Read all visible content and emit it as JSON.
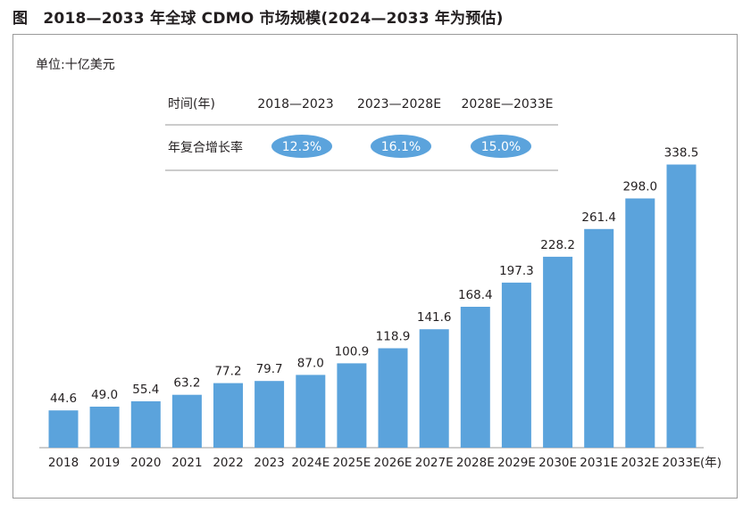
{
  "figure": {
    "title": "图　2018—2033 年全球 CDMO 市场规模(2024—2033 年为预估)",
    "unit": "单位:十亿美元"
  },
  "cagr_table": {
    "row1_label": "时间(年)",
    "row2_label": "年复合增长率",
    "periods": [
      "2018—2023",
      "2023—2028E",
      "2028E—2033E"
    ],
    "rates": [
      "12.3%",
      "16.1%",
      "15.0%"
    ]
  },
  "colors": {
    "bar": "#5ba3dc",
    "pill": "#5ba3dc",
    "axis": "#9a9a9a",
    "text": "#231f20"
  },
  "chart_data": {
    "type": "bar",
    "categories": [
      "2018",
      "2019",
      "2020",
      "2021",
      "2022",
      "2023",
      "2024E",
      "2025E",
      "2026E",
      "2027E",
      "2028E",
      "2029E",
      "2030E",
      "2031E",
      "2032E",
      "2033E"
    ],
    "values": [
      44.6,
      49.0,
      55.4,
      63.2,
      77.2,
      79.7,
      87.0,
      100.9,
      118.9,
      141.6,
      168.4,
      197.3,
      228.2,
      261.4,
      298.0,
      338.5
    ],
    "value_labels": [
      "44.6",
      "49.0",
      "55.4",
      "63.2",
      "77.2",
      "79.7",
      "87.0",
      "100.9",
      "118.9",
      "141.6",
      "168.4",
      "197.3",
      "228.2",
      "261.4",
      "298.0",
      "338.5"
    ],
    "title": "",
    "xlabel": "(年)",
    "ylabel": "",
    "data_labels": "on",
    "grid": "off"
  }
}
